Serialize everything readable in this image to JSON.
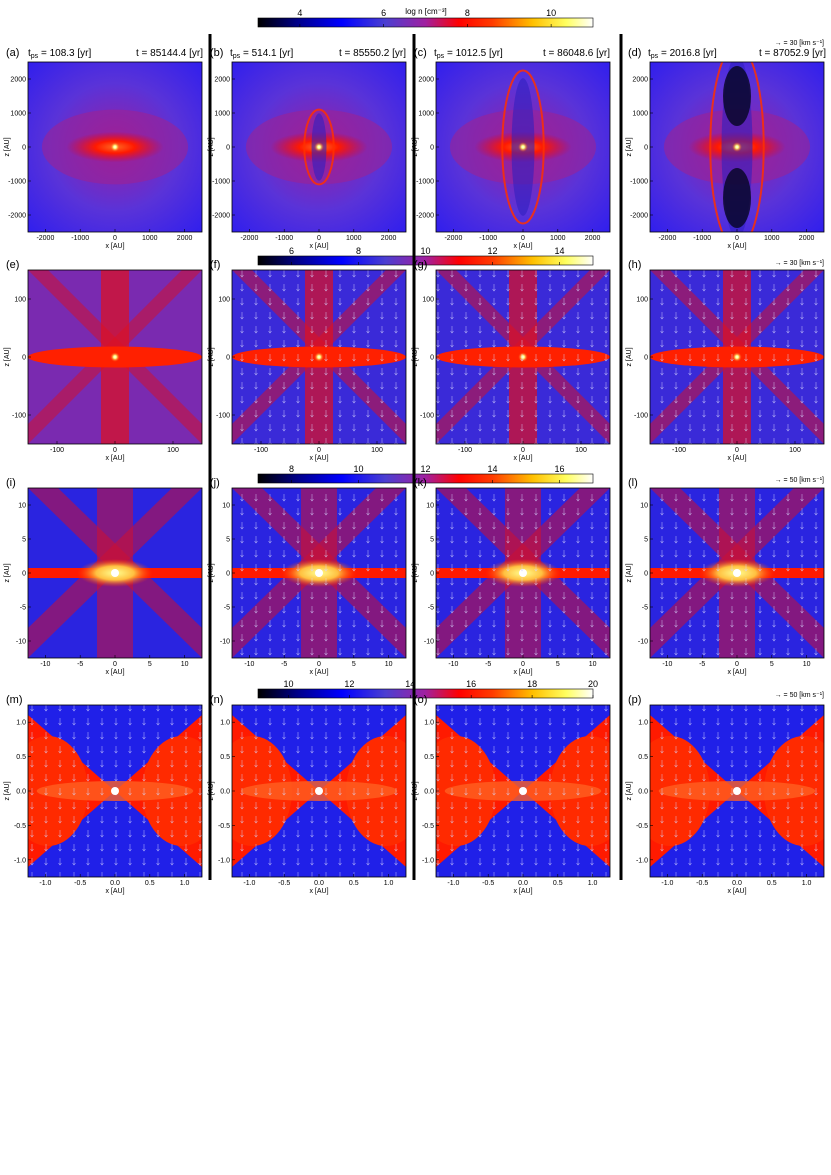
{
  "colorbar": {
    "unit_label": "log n [cm⁻³]",
    "rows": [
      {
        "ticks": [
          "4",
          "6",
          "8",
          "10"
        ],
        "range": [
          3,
          11
        ]
      },
      {
        "ticks": [
          "6",
          "8",
          "10",
          "12",
          "14"
        ],
        "range": [
          5,
          15
        ]
      },
      {
        "ticks": [
          "8",
          "10",
          "12",
          "14",
          "16"
        ],
        "range": [
          7,
          17
        ]
      },
      {
        "ticks": [
          "10",
          "12",
          "14",
          "16",
          "18",
          "20"
        ],
        "range": [
          9,
          20
        ]
      }
    ],
    "colors": [
      "#000000",
      "#00008b",
      "#0000ff",
      "#4b3fd1",
      "#a020a0",
      "#ff0000",
      "#ff3c00",
      "#ffc000",
      "#ffff60",
      "#ffffff"
    ]
  },
  "velocity_legends": [
    "→ = 30 [km s⁻¹]",
    "→ = 30 [km s⁻¹]",
    "→ = 50 [km s⁻¹]",
    "→ = 50 [km s⁻¹]"
  ],
  "headers": [
    {
      "tps": "t",
      "tps_sub": "ps",
      "tps_value": " = 108.3 [yr]",
      "t": "t = 85144.4 [yr]"
    },
    {
      "tps": "t",
      "tps_sub": "ps",
      "tps_value": " = 514.1 [yr]",
      "t": "t = 85550.2 [yr]"
    },
    {
      "tps": "t",
      "tps_sub": "ps",
      "tps_value": " = 1012.5 [yr]",
      "t": "t = 86048.6 [yr]"
    },
    {
      "tps": "t",
      "tps_sub": "ps",
      "tps_value": " = 2016.8 [yr]",
      "t": "t = 87052.9 [yr]"
    }
  ],
  "axes": {
    "xlabel": "x [AU]",
    "ylabel": "z [AU]"
  },
  "rows": [
    {
      "panels": [
        "(a)",
        "(b)",
        "(c)",
        "(d)"
      ],
      "xticks": [
        "-2000",
        "-1000",
        "0",
        "1000",
        "2000"
      ],
      "yticks": [
        "2000",
        "1000",
        "0",
        "-1000",
        "-2000"
      ]
    },
    {
      "panels": [
        "(e)",
        "(f)",
        "(g)",
        "(h)"
      ],
      "xticks": [
        "-100",
        "0",
        "100"
      ],
      "yticks": [
        "100",
        "0",
        "-100"
      ]
    },
    {
      "panels": [
        "(i)",
        "(j)",
        "(k)",
        "(l)"
      ],
      "xticks": [
        "-10",
        "-5",
        "0",
        "5",
        "10"
      ],
      "yticks": [
        "10",
        "5",
        "0",
        "-5",
        "-10"
      ]
    },
    {
      "panels": [
        "(m)",
        "(n)",
        "(o)",
        "(p)"
      ],
      "xticks": [
        "-1.0",
        "-0.5",
        "0.0",
        "0.5",
        "1.0"
      ],
      "yticks": [
        "1.0",
        "0.5",
        "0.0",
        "-0.5",
        "-1.0"
      ]
    }
  ]
}
